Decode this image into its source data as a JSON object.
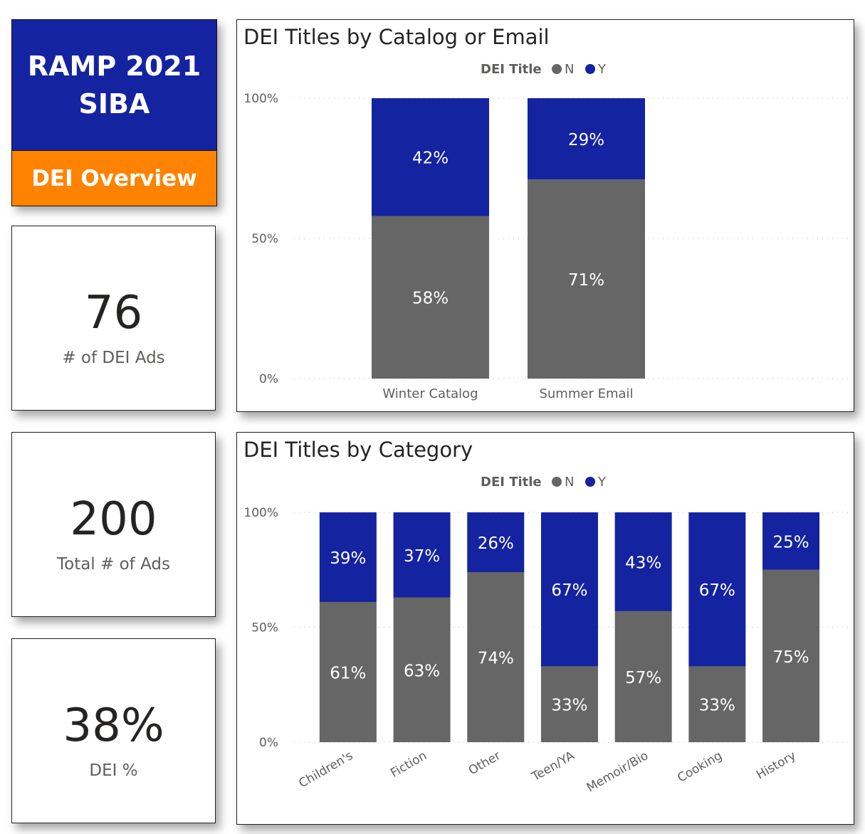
{
  "header": {
    "title_line1": "RAMP 2021",
    "title_line2": "SIBA",
    "subtitle": "DEI Overview"
  },
  "kpis": [
    {
      "value": "76",
      "label": "# of DEI Ads"
    },
    {
      "value": "200",
      "label": "Total # of Ads"
    },
    {
      "value": "38%",
      "label": "DEI %"
    }
  ],
  "colors": {
    "series_n": "#666666",
    "series_y": "#1423A0",
    "header_blue": "#1423A0",
    "header_orange": "#FF8300"
  },
  "chart_data": [
    {
      "type": "bar",
      "stacked": "100%",
      "title": "DEI Titles by Catalog or Email",
      "legend_title": "DEI Title",
      "legend_position": "top-center",
      "categories": [
        "Winter Catalog",
        "Summer Email"
      ],
      "series": [
        {
          "name": "N",
          "values": [
            58,
            71
          ],
          "labels": [
            "58%",
            "71%"
          ]
        },
        {
          "name": "Y",
          "values": [
            42,
            29
          ],
          "labels": [
            "42%",
            "29%"
          ]
        }
      ],
      "y_ticks": [
        "100%",
        "50%",
        "0%"
      ],
      "ylim": [
        0,
        100
      ],
      "grid": true
    },
    {
      "type": "bar",
      "stacked": "100%",
      "title": "DEI Titles by Category",
      "legend_title": "DEI Title",
      "legend_position": "top-center",
      "categories": [
        "Children's",
        "Fiction",
        "Other",
        "Teen/YA",
        "Memoir/Bio",
        "Cooking",
        "History"
      ],
      "series": [
        {
          "name": "N",
          "values": [
            61,
            63,
            74,
            33,
            57,
            33,
            75
          ],
          "labels": [
            "61%",
            "63%",
            "74%",
            "33%",
            "57%",
            "33%",
            "75%"
          ]
        },
        {
          "name": "Y",
          "values": [
            39,
            37,
            26,
            67,
            43,
            67,
            25
          ],
          "labels": [
            "39%",
            "37%",
            "26%",
            "67%",
            "43%",
            "67%",
            "25%"
          ]
        }
      ],
      "y_ticks": [
        "100%",
        "50%",
        "0%"
      ],
      "ylim": [
        0,
        100
      ],
      "grid": true
    }
  ]
}
